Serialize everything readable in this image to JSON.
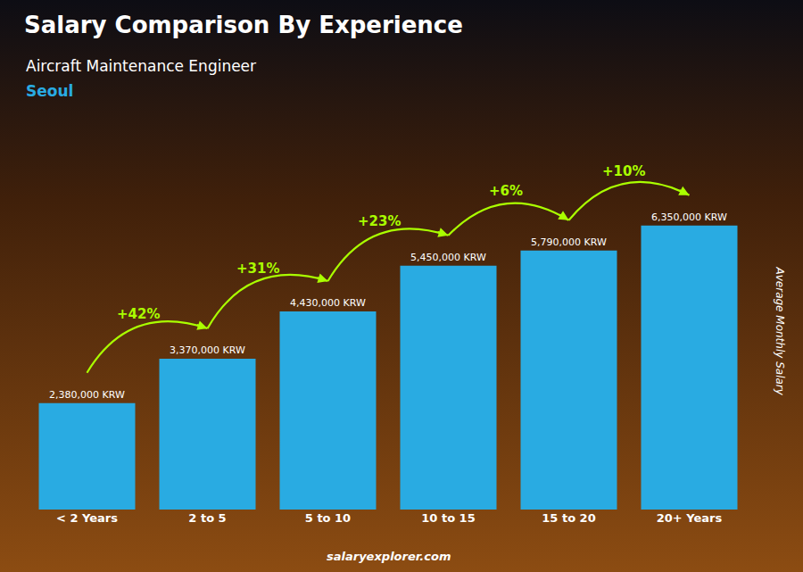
{
  "chart_data": {
    "type": "bar",
    "title": "Salary Comparison By Experience",
    "subtitle": [
      {
        "text": "Aircraft Maintenance Engineer"
      },
      {
        "text": "Seoul",
        "color": "#29ABE2"
      }
    ],
    "ylabel": "Average Monthly Salary",
    "categories": [
      "< 2 Years",
      "2 to 5",
      "5 to 10",
      "10 to 15",
      "15 to 20",
      "20+ Years"
    ],
    "values": [
      2380000,
      3370000,
      4430000,
      5450000,
      5790000,
      6350000
    ],
    "value_labels": [
      "2,380,000 KRW",
      "3,370,000 KRW",
      "4,430,000 KRW",
      "5,450,000 KRW",
      "5,790,000 KRW",
      "6,350,000 KRW"
    ],
    "color": "#29ABE2",
    "ylim": [
      0,
      8000000
    ],
    "grid": false,
    "data_labels": true,
    "tick_labels": "x",
    "annotations": [
      {
        "text": "+42%",
        "from": "< 2 Years",
        "to": "2 to 5",
        "color": "#AAFF00"
      },
      {
        "text": "+31%",
        "from": "2 to 5",
        "to": "5 to 10",
        "color": "#AAFF00"
      },
      {
        "text": "+23%",
        "from": "5 to 10",
        "to": "10 to 15",
        "color": "#AAFF00"
      },
      {
        "text": "+6%",
        "from": "10 to 15",
        "to": "15 to 20",
        "color": "#AAFF00"
      },
      {
        "text": "+10%",
        "from": "15 to 20",
        "to": "20+ Years",
        "color": "#AAFF00"
      },
      {
        "text": "salaryexplorer.com"
      }
    ]
  }
}
